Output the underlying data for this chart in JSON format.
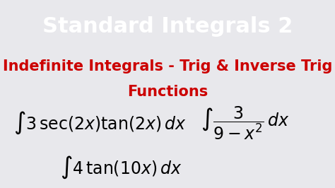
{
  "title": "Standard Integrals 2",
  "title_color": "#ffffff",
  "title_bg_color": "#1565C0",
  "subtitle_line1": "Indefinite Integrals - Trig & Inverse Trig",
  "subtitle_line2": "Functions",
  "subtitle_color": "#cc0000",
  "body_bg_color": "#e8e8ec",
  "formula_color": "#000000",
  "title_fontsize": 22,
  "subtitle_fontsize": 15,
  "formula_fontsize": 17
}
